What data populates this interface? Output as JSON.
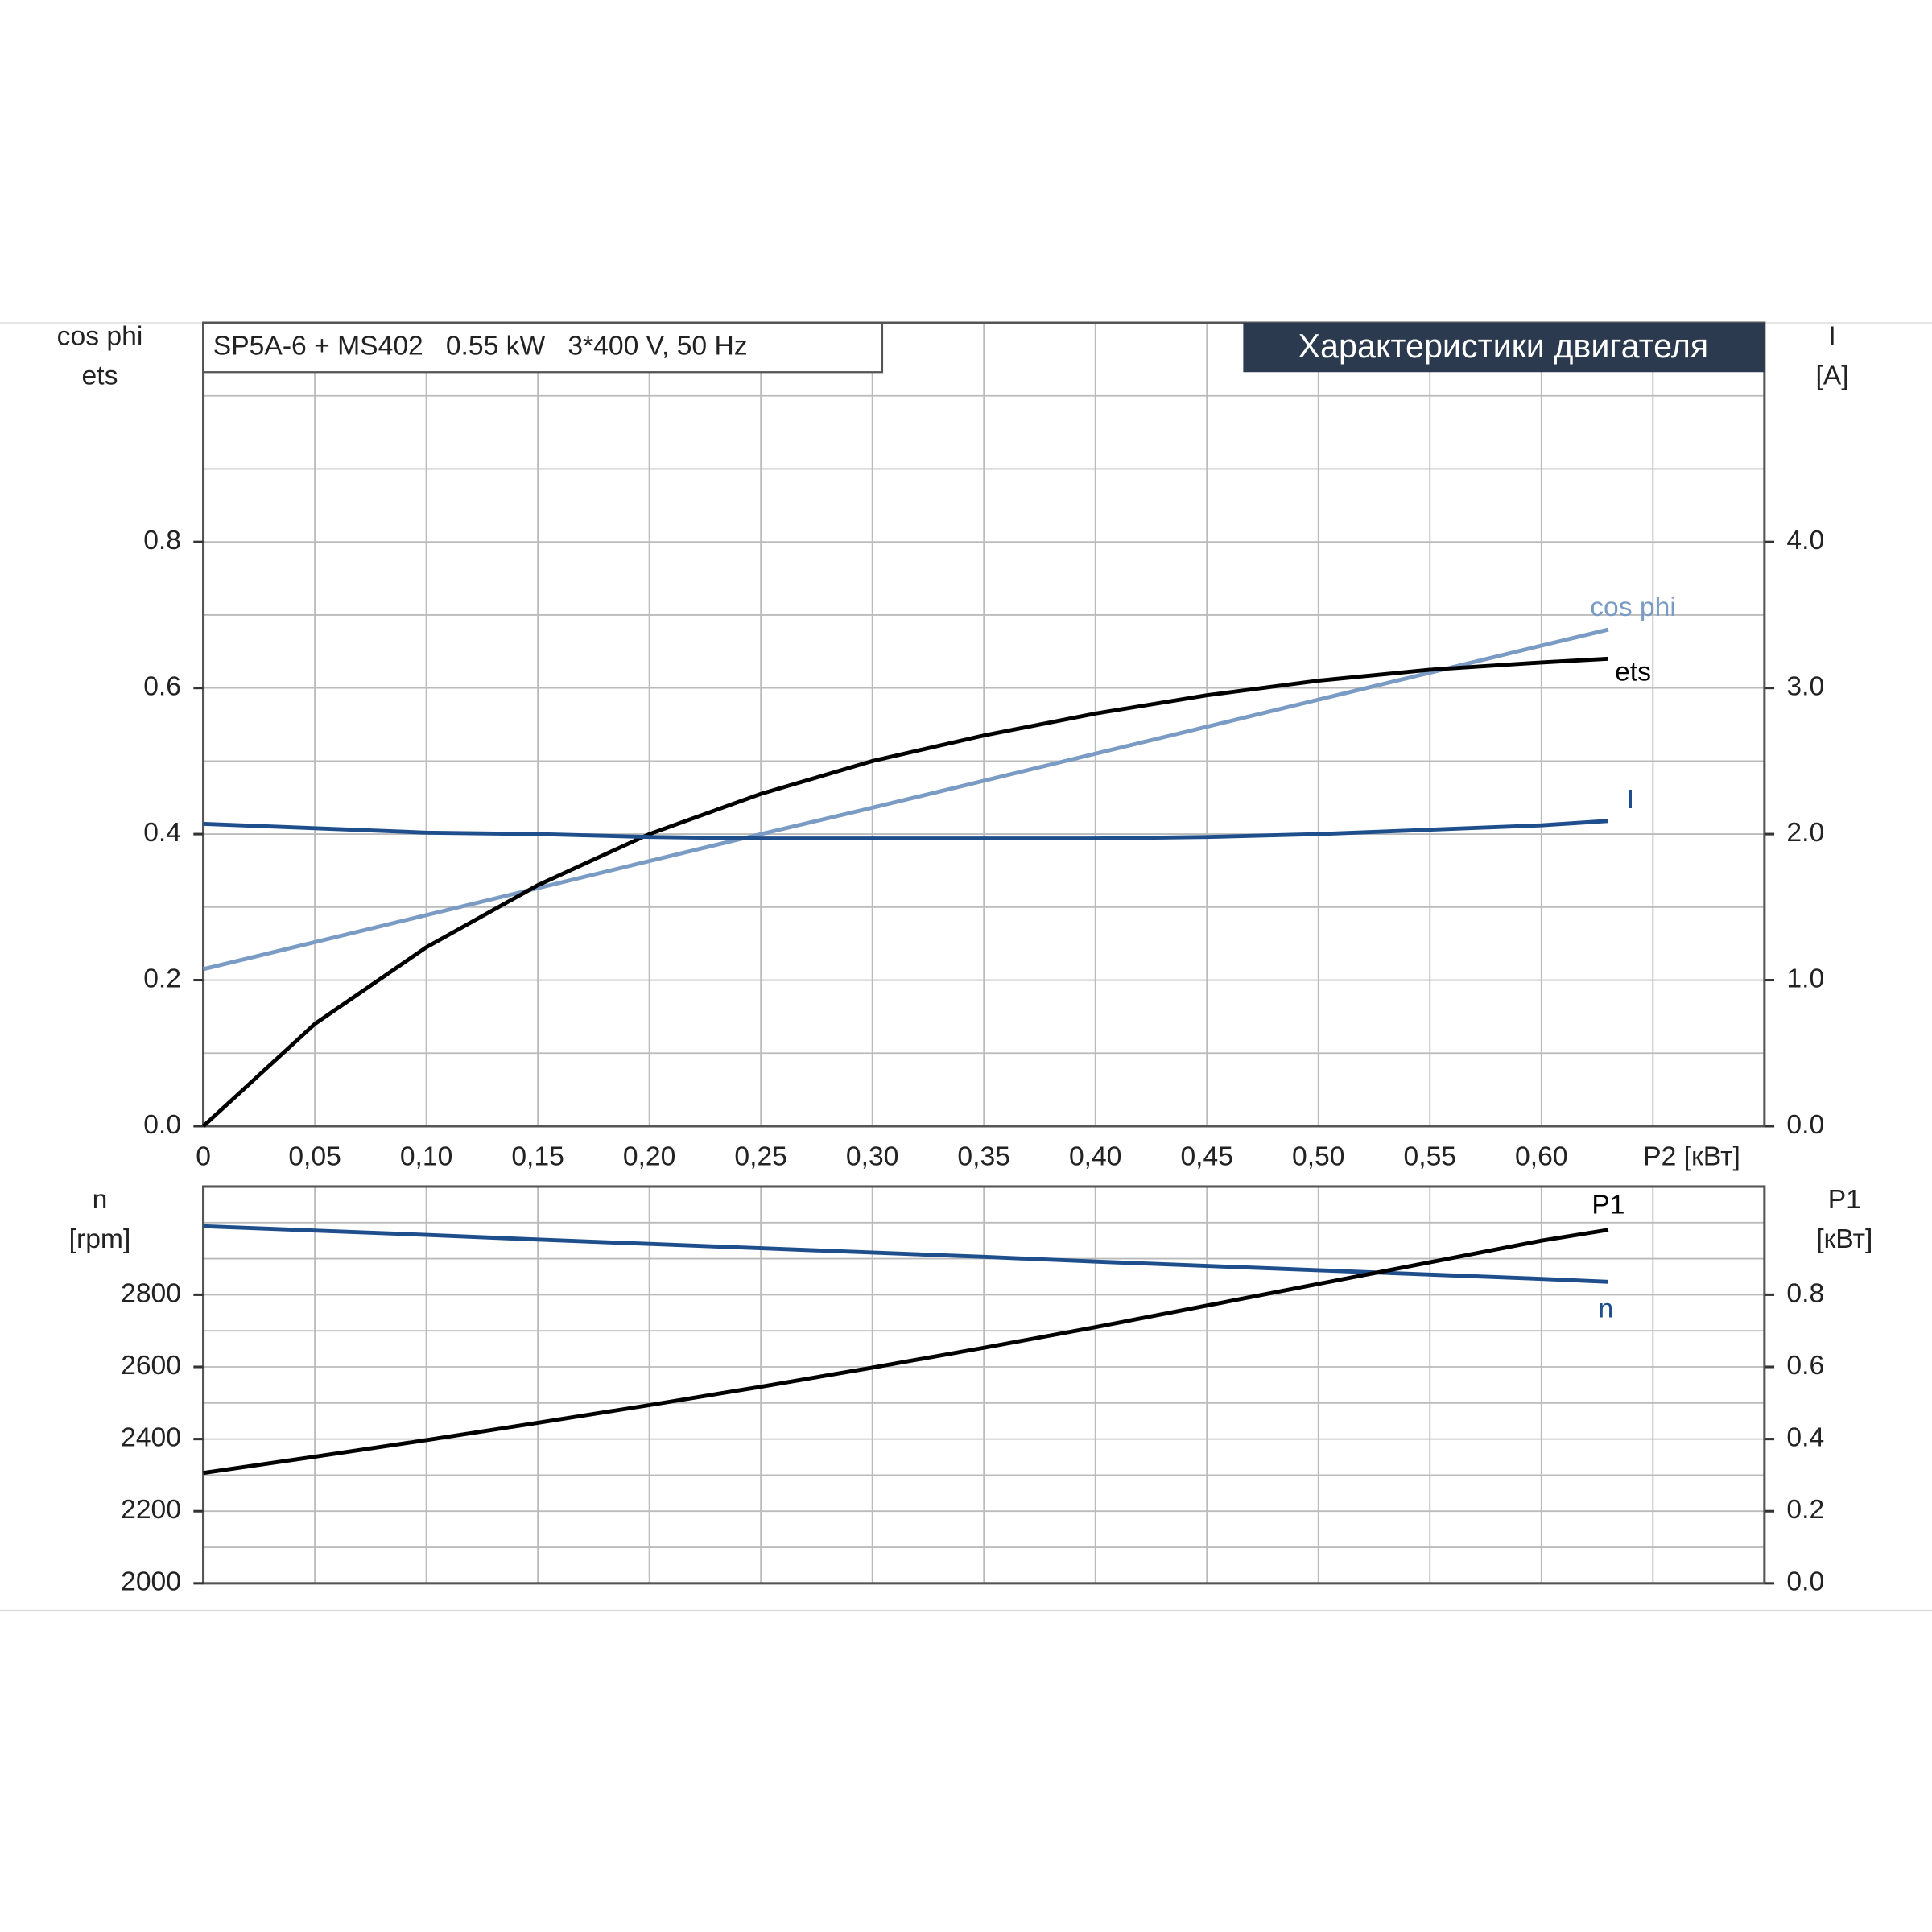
{
  "chart_data": [
    {
      "type": "line",
      "title": "SP5A-6 + MS402   0.55 kW   3*400 V, 50 Hz",
      "subtitle": "Характеристики двигателя",
      "xlabel": "P2 [кВт]",
      "ylabel": [
        "cos phi",
        "ets"
      ],
      "y2label": [
        "I",
        "[A]"
      ],
      "x": [
        0,
        0.05,
        0.1,
        0.15,
        0.2,
        0.25,
        0.3,
        0.35,
        0.4,
        0.45,
        0.5,
        0.55,
        0.6,
        0.63
      ],
      "xlim": [
        0,
        0.7
      ],
      "xticks": [
        0,
        {
          "value": 0.05,
          "label": "0,05"
        },
        {
          "value": 0.1,
          "label": "0,10"
        },
        {
          "value": 0.15,
          "label": "0,15"
        },
        {
          "value": 0.2,
          "label": "0,20"
        },
        {
          "value": 0.25,
          "label": "0,25"
        },
        {
          "value": 0.3,
          "label": "0,30"
        },
        {
          "value": 0.35,
          "label": "0,35"
        },
        {
          "value": 0.4,
          "label": "0,40"
        },
        {
          "value": 0.45,
          "label": "0,45"
        },
        {
          "value": 0.5,
          "label": "0,50"
        },
        {
          "value": 0.55,
          "label": "0,55"
        },
        {
          "value": 0.6,
          "label": "0,60"
        }
      ],
      "ylim": [
        0,
        1.1
      ],
      "yticks": [
        {
          "value": 0,
          "label": "0.0"
        },
        0.2,
        0.4,
        0.6,
        0.8
      ],
      "y2lim": [
        0,
        5.5
      ],
      "y2ticks": [
        {
          "value": 0,
          "label": "0.0"
        },
        {
          "value": 1,
          "label": "1.0"
        },
        {
          "value": 2,
          "label": "2.0"
        },
        {
          "value": 3,
          "label": "3.0"
        },
        {
          "value": 4,
          "label": "4.0"
        }
      ],
      "grid": true,
      "series": [
        {
          "name": "cos phi",
          "color": "#7a9cc4",
          "values": [
            0.215,
            0.252,
            0.289,
            0.326,
            0.363,
            0.4,
            0.436,
            0.473,
            0.51,
            0.547,
            0.584,
            0.621,
            0.658,
            0.68
          ]
        },
        {
          "name": "ets",
          "color": "#000000",
          "values": [
            0,
            0.14,
            0.245,
            0.33,
            0.4,
            0.455,
            0.5,
            0.535,
            0.565,
            0.59,
            0.61,
            0.625,
            0.635,
            0.64
          ]
        },
        {
          "name": "I",
          "color": "#1f4e8c",
          "axis": "y2",
          "values": [
            2.07,
            2.04,
            2.01,
            2.0,
            1.98,
            1.97,
            1.97,
            1.97,
            1.97,
            1.98,
            2.0,
            2.03,
            2.06,
            2.09
          ]
        }
      ]
    },
    {
      "type": "line",
      "ylabel": [
        "n",
        "[rpm]"
      ],
      "y2label": [
        "P1",
        "[кВт]"
      ],
      "x": [
        0,
        0.05,
        0.1,
        0.15,
        0.2,
        0.25,
        0.3,
        0.35,
        0.4,
        0.45,
        0.5,
        0.55,
        0.6,
        0.63
      ],
      "xlim": [
        0,
        0.7
      ],
      "ylim": [
        2000,
        3100
      ],
      "yticks": [
        2000,
        2200,
        2400,
        2600,
        2800
      ],
      "y2lim": [
        0,
        1.1
      ],
      "y2ticks": [
        {
          "value": 0,
          "label": "0.0"
        },
        0.2,
        0.4,
        0.6,
        0.8
      ],
      "grid": true,
      "series": [
        {
          "name": "n",
          "color": "#1f4e8c",
          "values": [
            2990,
            2978,
            2966,
            2953,
            2941,
            2929,
            2917,
            2905,
            2892,
            2880,
            2868,
            2856,
            2844,
            2836
          ]
        },
        {
          "name": "P1",
          "color": "#000000",
          "axis": "y2",
          "values": [
            0.306,
            0.351,
            0.397,
            0.445,
            0.494,
            0.545,
            0.598,
            0.653,
            0.71,
            0.77,
            0.83,
            0.89,
            0.95,
            0.98
          ]
        }
      ]
    }
  ]
}
